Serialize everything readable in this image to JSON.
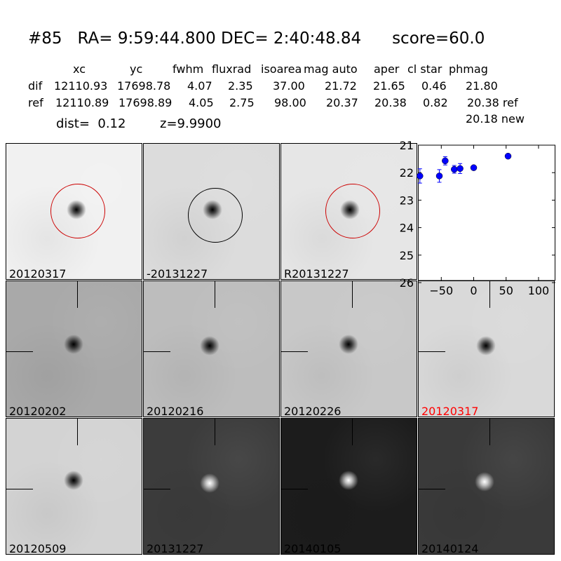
{
  "title": {
    "id": "#85",
    "ra": "RA= 9:59:44.800",
    "dec": "DEC= 2:40:48.84",
    "score": "score=60.0"
  },
  "table": {
    "headers": [
      "xc",
      "yc",
      "fwhm",
      "fluxrad",
      "isoarea",
      "mag auto",
      "aper",
      "cl star",
      "phmag"
    ],
    "dif": {
      "label": "dif",
      "values": [
        "12110.93",
        "17698.78",
        "4.07",
        "2.35",
        "37.00",
        "21.72",
        "21.65",
        "0.46",
        "21.80"
      ]
    },
    "ref": {
      "label": "ref",
      "values": [
        "12110.89",
        "17698.89",
        "4.05",
        "2.75",
        "98.00",
        "20.37",
        "20.38",
        "0.82",
        "20.38 ref"
      ]
    },
    "new": "20.18 new",
    "dist": "dist=  0.12",
    "z": "z=9.9900"
  },
  "panels": [
    {
      "label": "20120317",
      "bg": "#f1f1f1",
      "star": "dark",
      "circle": "#cc0000"
    },
    {
      "label": "-20131227",
      "bg": "#dcdcdc",
      "star": "dark",
      "circle": "#000000"
    },
    {
      "label": "R20131227",
      "bg": "#e6e6e6",
      "star": "dark",
      "circle": "#cc0000"
    },
    {
      "label": "20120202",
      "bg": "#a9a9a9",
      "star": "dark",
      "cross": true
    },
    {
      "label": "20120216",
      "bg": "#bdbdbd",
      "star": "dark",
      "cross": true
    },
    {
      "label": "20120226",
      "bg": "#c8c8c8",
      "star": "dark",
      "cross": true
    },
    {
      "label": "20120317",
      "bg": "#d9d9d9",
      "star": "dark",
      "cross": true,
      "labelColor": "#ff0000"
    },
    {
      "label": "20120509",
      "bg": "#d3d3d3",
      "star": "dark",
      "cross": true
    },
    {
      "label": "20131227",
      "bg": "#3c3c3c",
      "star": "light",
      "cross": true
    },
    {
      "label": "20140105",
      "bg": "#1c1c1c",
      "star": "light",
      "cross": true
    },
    {
      "label": "20140124",
      "bg": "#3a3a3a",
      "star": "light",
      "cross": true
    }
  ],
  "chart_data": {
    "type": "scatter",
    "x": [
      -83,
      -53,
      -44,
      -30,
      -21,
      0,
      53
    ],
    "y": [
      22.12,
      22.12,
      21.57,
      21.88,
      21.85,
      21.82,
      21.4
    ],
    "yerr": [
      0.26,
      0.23,
      0.15,
      0.14,
      0.18,
      0.06,
      0.04
    ],
    "xlim": [
      -86,
      126
    ],
    "ylim": [
      26,
      21
    ],
    "xticks": [
      -50,
      0,
      50,
      100
    ],
    "yticks": [
      21,
      22,
      23,
      24,
      25,
      26
    ],
    "color": "#0000ff",
    "grid": false
  }
}
